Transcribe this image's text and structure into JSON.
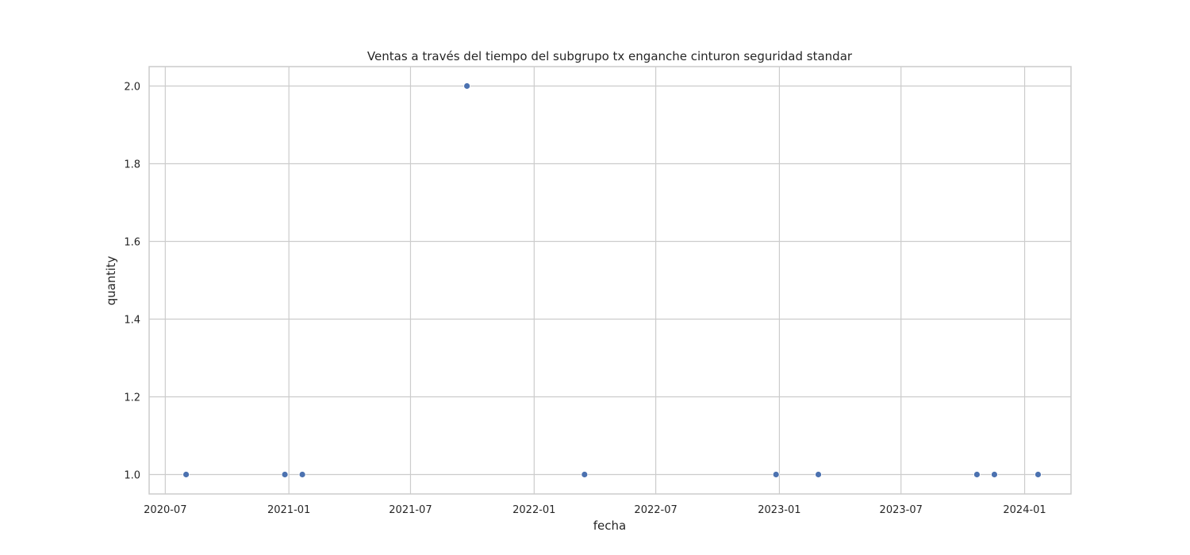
{
  "chart_data": {
    "type": "scatter",
    "title": "Ventas a través del tiempo del subgrupo tx enganche cinturon seguridad standar",
    "xlabel": "fecha",
    "ylabel": "quantity",
    "x_type": "date",
    "xlim": [
      "2020-06-07",
      "2024-03-10"
    ],
    "ylim": [
      0.95,
      2.05
    ],
    "x_ticks": [
      {
        "date": "2020-07-01",
        "label": "2020-07"
      },
      {
        "date": "2021-01-01",
        "label": "2021-01"
      },
      {
        "date": "2021-07-01",
        "label": "2021-07"
      },
      {
        "date": "2022-01-01",
        "label": "2022-01"
      },
      {
        "date": "2022-07-01",
        "label": "2022-07"
      },
      {
        "date": "2023-01-01",
        "label": "2023-01"
      },
      {
        "date": "2023-07-01",
        "label": "2023-07"
      },
      {
        "date": "2024-01-01",
        "label": "2024-01"
      }
    ],
    "y_ticks": [
      1.0,
      1.2,
      1.4,
      1.6,
      1.8,
      2.0
    ],
    "y_tick_labels": [
      "1.0",
      "1.2",
      "1.4",
      "1.6",
      "1.8",
      "2.0"
    ],
    "grid": true,
    "marker_color": "#4c72b0",
    "grid_color": "#cccccc",
    "points": [
      {
        "x": "2020-08-01",
        "y": 1
      },
      {
        "x": "2020-12-26",
        "y": 1
      },
      {
        "x": "2021-01-21",
        "y": 1
      },
      {
        "x": "2021-09-23",
        "y": 2
      },
      {
        "x": "2022-03-17",
        "y": 1
      },
      {
        "x": "2022-12-27",
        "y": 1
      },
      {
        "x": "2023-02-28",
        "y": 1
      },
      {
        "x": "2023-10-22",
        "y": 1
      },
      {
        "x": "2023-11-17",
        "y": 1
      },
      {
        "x": "2024-01-21",
        "y": 1
      }
    ]
  }
}
